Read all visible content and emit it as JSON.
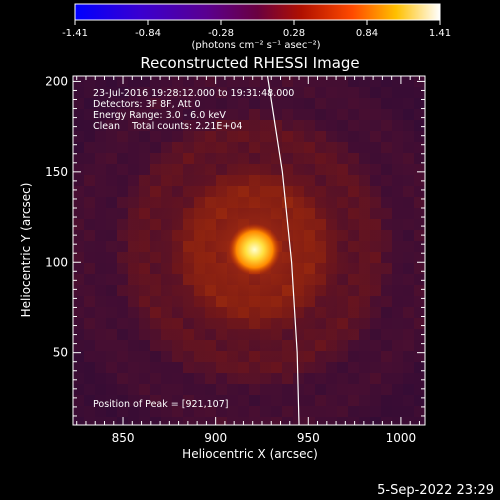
{
  "chart_data": {
    "type": "heatmap",
    "title": "Reconstructed RHESSI Image",
    "xlabel": "Heliocentric X (arcsec)",
    "ylabel": "Heliocentric Y (arcsec)",
    "xlim": [
      823,
      1013
    ],
    "ylim": [
      10,
      203
    ],
    "x_ticks": [
      850,
      900,
      950,
      1000
    ],
    "y_ticks": [
      50,
      100,
      150,
      200
    ],
    "colorbar": {
      "range": [
        -1.41,
        1.41
      ],
      "ticks": [
        "-1.41",
        "-0.84",
        "-0.28",
        "0.28",
        "0.84",
        "1.41"
      ],
      "label": "(photons cm⁻² s⁻¹ asec⁻²)",
      "colormap": "blue-purple-red-yellow-white"
    },
    "annotations": [
      "23-Jul-2016 19:28:12.000 to 19:31:48.000",
      "Detectors: 3F 8F, Att 0",
      "Energy Range: 3.0 - 6.0 keV",
      "Clean    Total counts: 2.21E+04"
    ],
    "peak_label": "Position of Peak = [921,107]",
    "peak": {
      "x": 921,
      "y": 107,
      "value": 1.41
    },
    "solar_limb": [
      {
        "x": 928,
        "y": 203
      },
      {
        "x": 936,
        "y": 150
      },
      {
        "x": 941,
        "y": 100
      },
      {
        "x": 944,
        "y": 50
      },
      {
        "x": 945,
        "y": 10
      }
    ]
  },
  "footer": {
    "timestamp": "5-Sep-2022 23:29"
  }
}
